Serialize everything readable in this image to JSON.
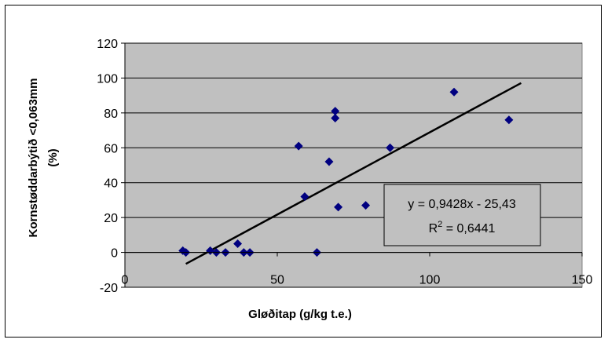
{
  "chart_data": {
    "type": "scatter",
    "title": "",
    "xlabel": "Gløðitap (g/kg t.e.)",
    "ylabel_line1": "Kornstøddarbýtið <0,063mm",
    "ylabel_line2": "(%)",
    "xlim": [
      0,
      150
    ],
    "ylim": [
      -20,
      120
    ],
    "xticks": [
      0,
      50,
      100,
      150
    ],
    "yticks": [
      -20,
      0,
      20,
      40,
      60,
      80,
      100,
      120
    ],
    "grid": "horizontal",
    "plot_background": "#c0c0c0",
    "marker_color": "#000080",
    "marker": "diamond",
    "series": [
      {
        "points": [
          {
            "x": 19,
            "y": 1
          },
          {
            "x": 20,
            "y": 0
          },
          {
            "x": 28,
            "y": 1
          },
          {
            "x": 30,
            "y": 0
          },
          {
            "x": 33,
            "y": 0
          },
          {
            "x": 37,
            "y": 5
          },
          {
            "x": 39,
            "y": 0
          },
          {
            "x": 41,
            "y": 0
          },
          {
            "x": 57,
            "y": 61
          },
          {
            "x": 59,
            "y": 32
          },
          {
            "x": 63,
            "y": 0
          },
          {
            "x": 67,
            "y": 52
          },
          {
            "x": 69,
            "y": 81
          },
          {
            "x": 69,
            "y": 77
          },
          {
            "x": 70,
            "y": 26
          },
          {
            "x": 79,
            "y": 27
          },
          {
            "x": 87,
            "y": 60
          },
          {
            "x": 108,
            "y": 92
          },
          {
            "x": 126,
            "y": 76
          }
        ]
      }
    ],
    "trendline": {
      "slope": 0.9428,
      "intercept": -25.43,
      "x_range": [
        20,
        130
      ],
      "color": "#000000"
    },
    "annotation": {
      "equation": "y = 0,9428x - 25,43",
      "r2_prefix": "R",
      "r2_sup": "2",
      "r2_value": " = 0,6441"
    }
  }
}
